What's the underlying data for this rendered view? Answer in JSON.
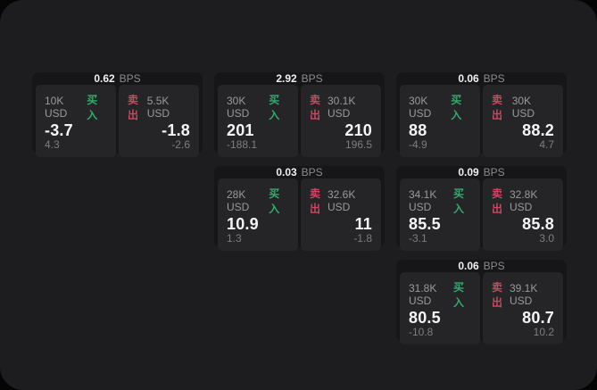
{
  "labels": {
    "bps_unit": "BPS",
    "buy": "买入",
    "sell": "卖出"
  },
  "colors": {
    "panel_background": "#1d1d1f",
    "card_background": "#161618",
    "tile_background": "#252527",
    "buy_green": "#35a96e",
    "sell_red": "#c74a62"
  },
  "cards": [
    {
      "bps": "0.62",
      "buy": {
        "size": "10K USD",
        "price": "-3.7",
        "delta": "4.3"
      },
      "sell": {
        "size": "5.5K USD",
        "price": "-1.8",
        "delta": "-2.6"
      }
    },
    {
      "bps": "2.92",
      "buy": {
        "size": "30K USD",
        "price": "201",
        "delta": "-188.1"
      },
      "sell": {
        "size": "30.1K USD",
        "price": "210",
        "delta": "196.5"
      }
    },
    {
      "bps": "0.06",
      "buy": {
        "size": "30K USD",
        "price": "88",
        "delta": "-4.9"
      },
      "sell": {
        "size": "30K USD",
        "price": "88.2",
        "delta": "4.7"
      }
    },
    {
      "bps": "0.03",
      "buy": {
        "size": "28K USD",
        "price": "10.9",
        "delta": "1.3"
      },
      "sell": {
        "size": "32.6K USD",
        "price": "11",
        "delta": "-1.8"
      }
    },
    {
      "bps": "0.09",
      "buy": {
        "size": "34.1K USD",
        "price": "85.5",
        "delta": "-3.1"
      },
      "sell": {
        "size": "32.8K USD",
        "price": "85.8",
        "delta": "3.0"
      }
    },
    {
      "bps": "0.06",
      "buy": {
        "size": "31.8K USD",
        "price": "80.5",
        "delta": "-10.8"
      },
      "sell": {
        "size": "39.1K USD",
        "price": "80.7",
        "delta": "10.2"
      }
    }
  ]
}
